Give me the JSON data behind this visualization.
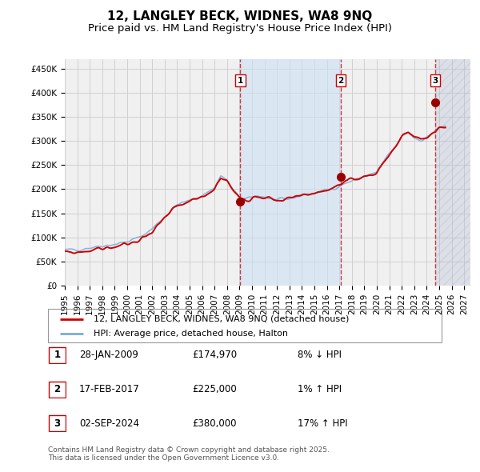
{
  "title": "12, LANGLEY BECK, WIDNES, WA8 9NQ",
  "subtitle": "Price paid vs. HM Land Registry's House Price Index (HPI)",
  "background_color": "#ffffff",
  "plot_bg_color": "#f0f0f0",
  "grid_color": "#cccccc",
  "hpi_color": "#7aaddc",
  "price_color": "#cc0000",
  "sale_marker_color": "#990000",
  "shade_color": "#cce0f5",
  "shade_alpha": 0.6,
  "hatch_color": "#aaaacc",
  "ylim": [
    0,
    470000
  ],
  "xlim_start": 1995.0,
  "xlim_end": 2027.5,
  "yticks": [
    0,
    50000,
    100000,
    150000,
    200000,
    250000,
    300000,
    350000,
    400000,
    450000
  ],
  "ytick_labels": [
    "£0",
    "£50K",
    "£100K",
    "£150K",
    "£200K",
    "£250K",
    "£300K",
    "£350K",
    "£400K",
    "£450K"
  ],
  "xticks": [
    1995,
    1996,
    1997,
    1998,
    1999,
    2000,
    2001,
    2002,
    2003,
    2004,
    2005,
    2006,
    2007,
    2008,
    2009,
    2010,
    2011,
    2012,
    2013,
    2014,
    2015,
    2016,
    2017,
    2018,
    2019,
    2020,
    2021,
    2022,
    2023,
    2024,
    2025,
    2026,
    2027
  ],
  "sale1_x": 2009.07,
  "sale1_y": 174970,
  "sale2_x": 2017.12,
  "sale2_y": 225000,
  "sale3_x": 2024.67,
  "sale3_y": 380000,
  "shade_start": 2009.07,
  "shade_end": 2017.12,
  "hatch_start": 2024.67,
  "hatch_end": 2027.5,
  "legend_house_label": "12, LANGLEY BECK, WIDNES, WA8 9NQ (detached house)",
  "legend_hpi_label": "HPI: Average price, detached house, Halton",
  "table_rows": [
    {
      "label": "1",
      "date": "28-JAN-2009",
      "price": "£174,970",
      "pct": "8% ↓ HPI"
    },
    {
      "label": "2",
      "date": "17-FEB-2017",
      "price": "£225,000",
      "pct": "1% ↑ HPI"
    },
    {
      "label": "3",
      "date": "02-SEP-2024",
      "price": "£380,000",
      "pct": "17% ↑ HPI"
    }
  ],
  "footnote": "Contains HM Land Registry data © Crown copyright and database right 2025.\nThis data is licensed under the Open Government Licence v3.0.",
  "title_fontsize": 11,
  "subtitle_fontsize": 9.5,
  "tick_fontsize": 7.5,
  "legend_fontsize": 8,
  "table_fontsize": 8.5,
  "footnote_fontsize": 6.5
}
